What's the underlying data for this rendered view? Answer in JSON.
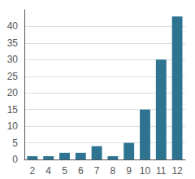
{
  "chart_data": {
    "type": "bar",
    "categories": [
      "2",
      "4",
      "5",
      "6",
      "7",
      "8",
      "9",
      "10",
      "11",
      "12"
    ],
    "values": [
      1,
      1,
      2,
      2,
      4,
      1,
      5,
      15,
      30,
      43
    ],
    "color": "#2e7491",
    "ylim": [
      0,
      45
    ],
    "yticks": [
      0,
      5,
      10,
      15,
      20,
      25,
      30,
      35,
      40
    ],
    "grid": true
  }
}
